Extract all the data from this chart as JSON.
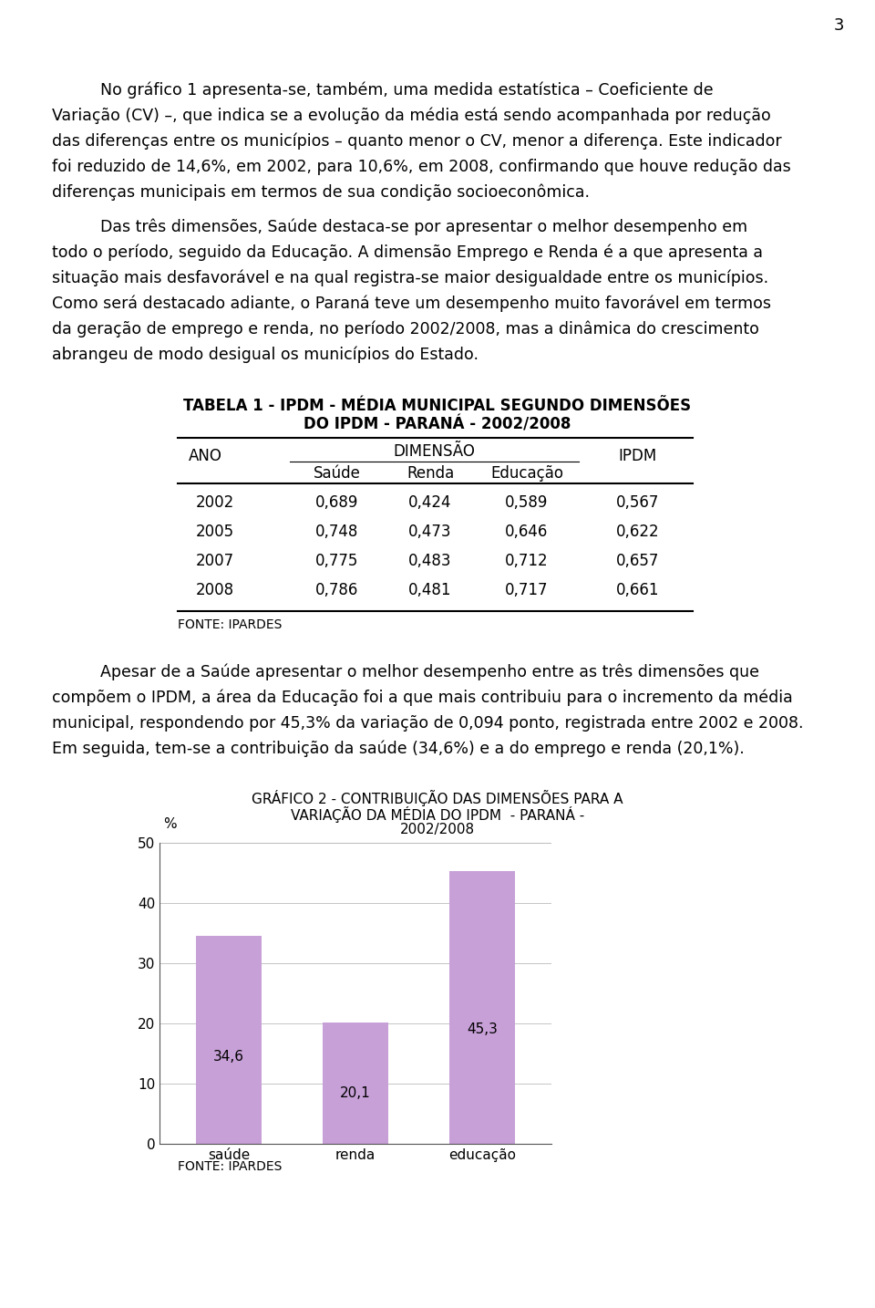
{
  "page_number": "3",
  "background_color": "#ffffff",
  "text_color": "#000000",
  "p1_lines": [
    "No gráfico 1 apresenta-se, também, uma medida estatística – Coeficiente de",
    "Variação (CV) –, que indica se a evolução da média está sendo acompanhada por redução",
    "das diferenças entre os municípios – quanto menor o CV, menor a diferença. Este indicador",
    "foi reduzido de 14,6%, em 2002, para 10,6%, em 2008, confirmando que houve redução das",
    "diferenças municipais em termos de sua condição socioeconômica."
  ],
  "p2_lines": [
    "Das três dimensões, Saúde destaca-se por apresentar o melhor desempenho em",
    "todo o período, seguido da Educação. A dimensão Emprego e Renda é a que apresenta a",
    "situação mais desfavorável e na qual registra-se maior desigualdade entre os municípios.",
    "Como será destacado adiante, o Paraná teve um desempenho muito favorável em termos",
    "da geração de emprego e renda, no período 2002/2008, mas a dinâmica do crescimento",
    "abrangeu de modo desigual os municípios do Estado."
  ],
  "table_title_line1": "TABELA 1 - IPDM - MÉDIA MUNICIPAL SEGUNDO DIMENSÕES",
  "table_title_line2": "DO IPDM - PARANÁ - 2002/2008",
  "table_header_col0": "ANO",
  "table_header_dimensao": "DIMENSÃO",
  "table_header_saude": "Saúde",
  "table_header_renda": "Renda",
  "table_header_educacao": "Educação",
  "table_header_ipdm": "IPDM",
  "table_rows": [
    [
      "2002",
      "0,689",
      "0,424",
      "0,589",
      "0,567"
    ],
    [
      "2005",
      "0,748",
      "0,473",
      "0,646",
      "0,622"
    ],
    [
      "2007",
      "0,775",
      "0,483",
      "0,712",
      "0,657"
    ],
    [
      "2008",
      "0,786",
      "0,481",
      "0,717",
      "0,661"
    ]
  ],
  "table_fonte": "FONTE: IPARDES",
  "p3_lines": [
    "Apesar de a Saúde apresentar o melhor desempenho entre as três dimensões que",
    "compõem o IPDM, a área da Educação foi a que mais contribuiu para o incremento da média",
    "municipal, respondendo por 45,3% da variação de 0,094 ponto, registrada entre 2002 e 2008.",
    "Em seguida, tem-se a contribuição da saúde (34,6%) e a do emprego e renda (20,1%)."
  ],
  "chart_title_line1": "GRÁFICO 2 - CONTRIBUIÇÃO DAS DIMENSÕES PARA A",
  "chart_title_line2": "VARIAÇÃO DA MÉDIA DO IPDM  - PARANÁ -",
  "chart_title_line3": "2002/2008",
  "chart_categories": [
    "saúde",
    "renda",
    "educação"
  ],
  "chart_values": [
    34.6,
    20.1,
    45.3
  ],
  "chart_bar_color": "#c8a0d8",
  "chart_ylim": [
    0,
    50
  ],
  "chart_yticks": [
    0,
    10,
    20,
    30,
    40,
    50
  ],
  "chart_ylabel": "%",
  "chart_fonte": "FONTE: IPARDES",
  "chart_value_labels": [
    "34,6",
    "20,1",
    "45,3"
  ]
}
